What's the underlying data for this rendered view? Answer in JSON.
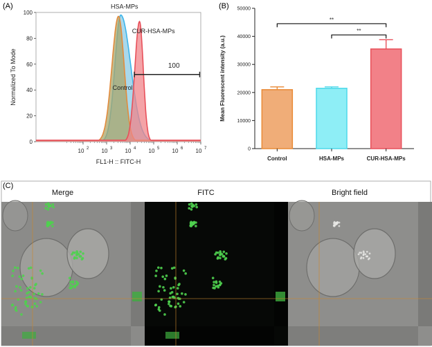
{
  "panel_labels": {
    "a": "(A)",
    "b": "(B)",
    "c": "(C)"
  },
  "chart_data": [
    {
      "type": "area",
      "xlabel": "FL1-H :: FITC-H",
      "ylabel": "Normalized To Mode",
      "x_scale": "log",
      "xlim": [
        1,
        10000000
      ],
      "ylim": [
        0,
        100
      ],
      "x_tick_labels": [
        "10",
        "2",
        "10",
        "3",
        "10",
        "4",
        "10",
        "5",
        "10",
        "6",
        "10",
        "7"
      ],
      "x_ticks": [
        100,
        1000,
        10000,
        100000,
        1000000,
        10000000
      ],
      "y_ticks": [
        0,
        20,
        40,
        60,
        80,
        100
      ],
      "y_tick_labels": [
        "0",
        "20",
        "40",
        "60",
        "80",
        "100"
      ],
      "series": [
        {
          "name": "Control",
          "color": "#e38b3c",
          "fill": "#a9a56a",
          "peak_x": 3200,
          "peak_y": 97
        },
        {
          "name": "HSA-MPs",
          "color": "#3cb4ea",
          "fill": "#8ccbe4",
          "peak_x": 4000,
          "peak_y": 98
        },
        {
          "name": "CUR-HSA-MPs",
          "color": "#e8505a",
          "fill": "#f0848a",
          "peak_x": 25000,
          "peak_y": 93
        }
      ],
      "gate": {
        "label": "100",
        "x_start": 15000,
        "x_end": 9000000,
        "y": 52
      }
    },
    {
      "type": "bar",
      "ylabel": "Mean Fluorescent intensity (a.u.)",
      "categories": [
        "Control",
        "HSA-MPs",
        "CUR-HSA-MPs"
      ],
      "values": [
        21000,
        21500,
        35500
      ],
      "errors": [
        1000,
        500,
        3300
      ],
      "colors": [
        "#f0ad78",
        "#8eeef6",
        "#f28188"
      ],
      "edge_colors": [
        "#e98a36",
        "#4dd8ea",
        "#e8505a"
      ],
      "ylim": [
        0,
        50000
      ],
      "y_ticks": [
        0,
        10000,
        20000,
        30000,
        40000,
        50000
      ],
      "y_tick_labels": [
        "0",
        "10000",
        "20000",
        "30000",
        "40000",
        "50000"
      ],
      "significance": [
        {
          "from": "Control",
          "to": "CUR-HSA-MPs",
          "label": "**",
          "y": 44500
        },
        {
          "from": "HSA-MPs",
          "to": "CUR-HSA-MPs",
          "label": "**",
          "y": 40500
        }
      ]
    }
  ],
  "microscopy": {
    "panels": [
      {
        "label": "Merge"
      },
      {
        "label": "FITC"
      },
      {
        "label": "Bright field"
      }
    ]
  }
}
